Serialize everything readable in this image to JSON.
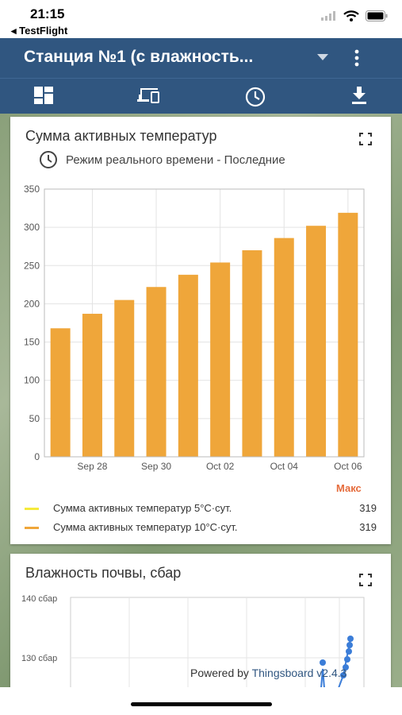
{
  "status_bar": {
    "time": "21:15",
    "back_label": "◂ TestFlight"
  },
  "app_bar": {
    "title": "Станция №1 (с влажность..."
  },
  "toolbar": {
    "icons": [
      "dashboard-icon",
      "devices-icon",
      "clock-icon",
      "download-icon"
    ]
  },
  "widget1": {
    "title": "Сумма активных температур",
    "subtitle": "Режим реального времени - Последние",
    "legend_header": "Макс",
    "legend": [
      {
        "name": "Сумма активных температур 5°C·сут.",
        "value": "319",
        "color": "#f5ea3b"
      },
      {
        "name": "Сумма активных температур 10°C·сут.",
        "value": "319",
        "color": "#efa63a"
      }
    ]
  },
  "chart_data": {
    "type": "bar",
    "categories": [
      "Sep 27",
      "Sep 28",
      "Sep 29",
      "Sep 30",
      "Oct 01",
      "Oct 02",
      "Oct 03",
      "Oct 04",
      "Oct 05",
      "Oct 06"
    ],
    "x_tick_labels": [
      "Sep 28",
      "Sep 30",
      "Oct 02",
      "Oct 04",
      "Oct 06"
    ],
    "series": [
      {
        "name": "Сумма активных температур 10°C·сут.",
        "values": [
          168,
          187,
          205,
          222,
          238,
          254,
          270,
          286,
          302,
          319
        ]
      }
    ],
    "y_ticks": [
      "0",
      "50",
      "100",
      "150",
      "200",
      "250",
      "300",
      "350"
    ],
    "ylim": [
      0,
      350
    ],
    "bar_color": "#efa63a",
    "grid": true
  },
  "widget2": {
    "title": "Влажность почвы, сбар",
    "y_ticks": [
      "140 сбар",
      "130 сбар"
    ]
  },
  "footer": {
    "powered_prefix": "Powered by ",
    "powered_link": "Thingsboard v2.4.3"
  }
}
